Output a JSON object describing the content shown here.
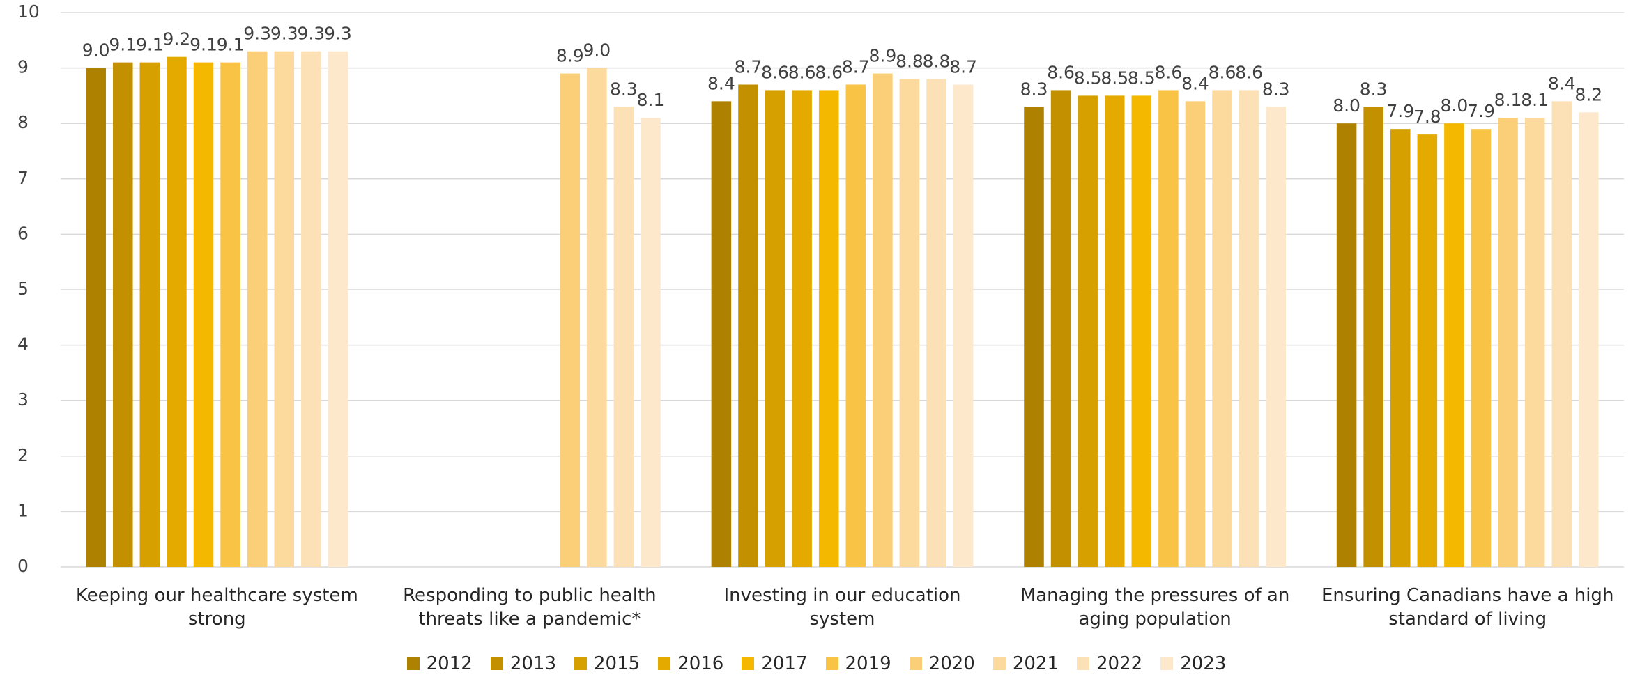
{
  "chart_data": {
    "type": "bar",
    "categories": [
      "Keeping our healthcare system strong",
      "Responding to public health threats like a pandemic*",
      "Investing in our education system",
      "Managing the pressures of an aging population",
      "Ensuring Canadians have a high standard of living"
    ],
    "series": [
      {
        "name": "2012",
        "color": "#ae8200",
        "values": [
          9.0,
          null,
          8.4,
          8.3,
          8.0
        ],
        "value_labels": [
          "9.0",
          null,
          "8.4",
          "8.3",
          "8.0"
        ]
      },
      {
        "name": "2013",
        "color": "#c39100",
        "values": [
          9.1,
          null,
          8.7,
          8.6,
          8.3
        ],
        "value_labels": [
          "9.1",
          null,
          "8.7",
          "8.6",
          "8.3"
        ]
      },
      {
        "name": "2015",
        "color": "#d6a000",
        "values": [
          9.1,
          null,
          8.6,
          8.5,
          7.9
        ],
        "value_labels": [
          "9.1",
          null,
          "8.6",
          "8.5",
          "7.9"
        ]
      },
      {
        "name": "2016",
        "color": "#e5aa00",
        "values": [
          9.2,
          null,
          8.6,
          8.5,
          7.8
        ],
        "value_labels": [
          "9.2",
          null,
          "8.6",
          "8.5",
          "7.8"
        ]
      },
      {
        "name": "2017",
        "color": "#f5b800",
        "values": [
          9.1,
          null,
          8.6,
          8.5,
          8.0
        ],
        "value_labels": [
          "9.1",
          null,
          "8.6",
          "8.5",
          "8.0"
        ]
      },
      {
        "name": "2019",
        "color": "#f9c446",
        "values": [
          9.1,
          null,
          8.7,
          8.6,
          7.9
        ],
        "value_labels": [
          "9.1",
          null,
          "8.7",
          "8.6",
          "7.9"
        ]
      },
      {
        "name": "2020",
        "color": "#fbcf78",
        "values": [
          9.3,
          8.9,
          8.9,
          8.4,
          8.1
        ],
        "value_labels": [
          "9.3",
          "8.9",
          "8.9",
          "8.4",
          "8.1"
        ]
      },
      {
        "name": "2021",
        "color": "#fcd99c",
        "values": [
          9.3,
          9.0,
          8.8,
          8.6,
          8.1
        ],
        "value_labels": [
          "9.3",
          "9.0",
          "8.8",
          "8.6",
          "8.1"
        ]
      },
      {
        "name": "2022",
        "color": "#fde1b6",
        "values": [
          9.3,
          8.3,
          8.8,
          8.6,
          8.4
        ],
        "value_labels": [
          "9.3",
          "8.3",
          "8.8",
          "8.6",
          "8.4"
        ]
      },
      {
        "name": "2023",
        "color": "#fde8cc",
        "values": [
          9.3,
          8.1,
          8.7,
          8.3,
          8.2
        ],
        "value_labels": [
          "9.3",
          "8.1",
          "8.7",
          "8.3",
          "8.2"
        ]
      }
    ],
    "ylim": [
      0,
      10
    ],
    "yticks": [
      0,
      1,
      2,
      3,
      4,
      5,
      6,
      7,
      8,
      9,
      10
    ],
    "grid": true,
    "legend": "bottom"
  }
}
